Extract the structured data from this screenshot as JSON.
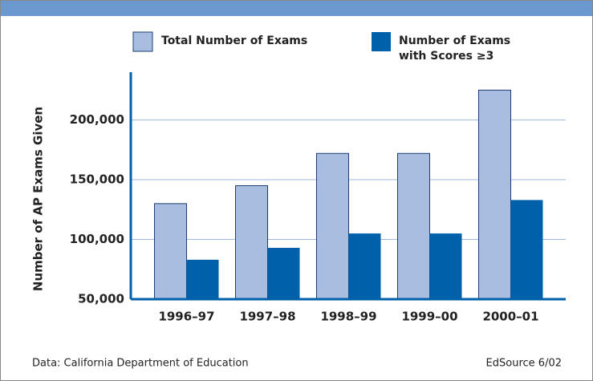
{
  "chart_data": {
    "type": "bar",
    "ylabel": "Number of AP Exams Given",
    "categories": [
      "1996–97",
      "1997–98",
      "1998–99",
      "1999–00",
      "2000–01"
    ],
    "series": [
      {
        "name": "Total Number of Exams",
        "color": "#a9bde0",
        "values": [
          130000,
          145000,
          172000,
          172000,
          225000
        ]
      },
      {
        "name": "Number of Exams with Scores ≥3",
        "color": "#0060a9",
        "values": [
          83000,
          93000,
          105000,
          105000,
          133000
        ]
      }
    ],
    "ylim": [
      50000,
      240000
    ],
    "yticks": [
      {
        "value": 50000,
        "label": "50,000"
      },
      {
        "value": 100000,
        "label": "100,000"
      },
      {
        "value": 150000,
        "label": "150,000"
      },
      {
        "value": 200000,
        "label": "200,000"
      }
    ],
    "grid": true,
    "source": "Data: California Department of Education",
    "credit": "EdSource 6/02"
  }
}
